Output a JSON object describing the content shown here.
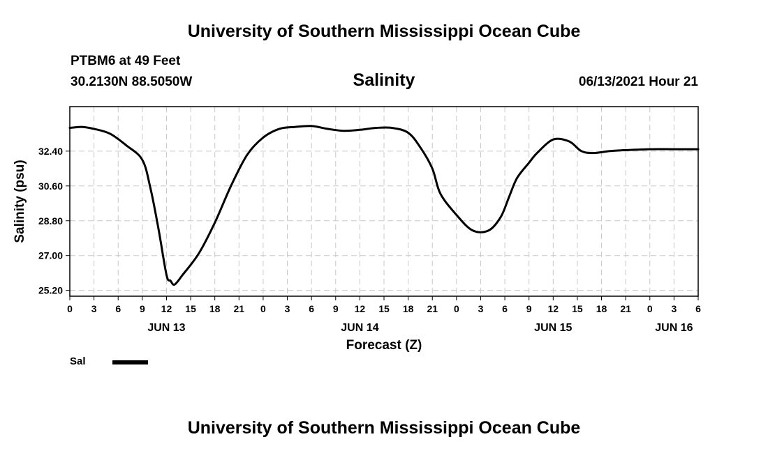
{
  "header": {
    "title": "University of Southern Mississippi Ocean Cube",
    "station": "PTBM6 at 49 Feet",
    "coords": "30.2130N  88.5050W",
    "chart_title": "Salinity",
    "timestamp": "06/13/2021 Hour 21"
  },
  "footer": {
    "title": "University of Southern Mississippi Ocean Cube"
  },
  "colors": {
    "line": "#000000",
    "grid": "#c8c8c8",
    "axis": "#000000"
  },
  "chart_data": {
    "type": "line",
    "title": "Salinity",
    "xlabel": "Forecast (Z)",
    "ylabel": "Salinity (psu)",
    "xlim": [
      0,
      78
    ],
    "ylim": [
      24.9,
      34.7
    ],
    "grid": true,
    "y_ticks": [
      25.2,
      27.0,
      28.8,
      30.6,
      32.4
    ],
    "y_tick_labels": [
      "25.20",
      "27.00",
      "28.80",
      "30.60",
      "32.40"
    ],
    "x_ticks": [
      0,
      3,
      6,
      9,
      12,
      15,
      18,
      21,
      24,
      27,
      30,
      33,
      36,
      39,
      42,
      45,
      48,
      51,
      54,
      57,
      60,
      63,
      66,
      69,
      72,
      75,
      78
    ],
    "x_tick_labels": [
      "0",
      "3",
      "6",
      "9",
      "12",
      "15",
      "18",
      "21",
      "0",
      "3",
      "6",
      "9",
      "12",
      "15",
      "18",
      "21",
      "0",
      "3",
      "6",
      "9",
      "12",
      "15",
      "18",
      "21",
      "0",
      "3",
      "6"
    ],
    "day_labels": [
      {
        "x": 12,
        "label": "JUN 13"
      },
      {
        "x": 36,
        "label": "JUN 14"
      },
      {
        "x": 60,
        "label": "JUN 15"
      },
      {
        "x": 75,
        "label": "JUN 16"
      }
    ],
    "legend": [
      {
        "name": "Sal",
        "placement": "bottom-left"
      }
    ],
    "series": [
      {
        "name": "Sal",
        "x": [
          0,
          1.5,
          3,
          5,
          7,
          9,
          10,
          11,
          12,
          12.5,
          13,
          14,
          16,
          18,
          20,
          22,
          24,
          26,
          28,
          30,
          32,
          34,
          36,
          38,
          40,
          42,
          43.5,
          45,
          46,
          48,
          50,
          52,
          53.5,
          54.5,
          55.5,
          57,
          58,
          60,
          62,
          63.5,
          65,
          67,
          69,
          72,
          75,
          78
        ],
        "y": [
          33.6,
          33.65,
          33.55,
          33.3,
          32.7,
          31.95,
          30.5,
          28.4,
          26.0,
          25.7,
          25.5,
          26.0,
          27.1,
          28.7,
          30.6,
          32.2,
          33.1,
          33.55,
          33.65,
          33.7,
          33.55,
          33.45,
          33.5,
          33.6,
          33.6,
          33.35,
          32.6,
          31.5,
          30.2,
          29.1,
          28.3,
          28.3,
          29.0,
          30.0,
          31.0,
          31.8,
          32.3,
          33.0,
          32.9,
          32.4,
          32.3,
          32.4,
          32.45,
          32.5,
          32.5,
          32.5
        ]
      }
    ]
  }
}
